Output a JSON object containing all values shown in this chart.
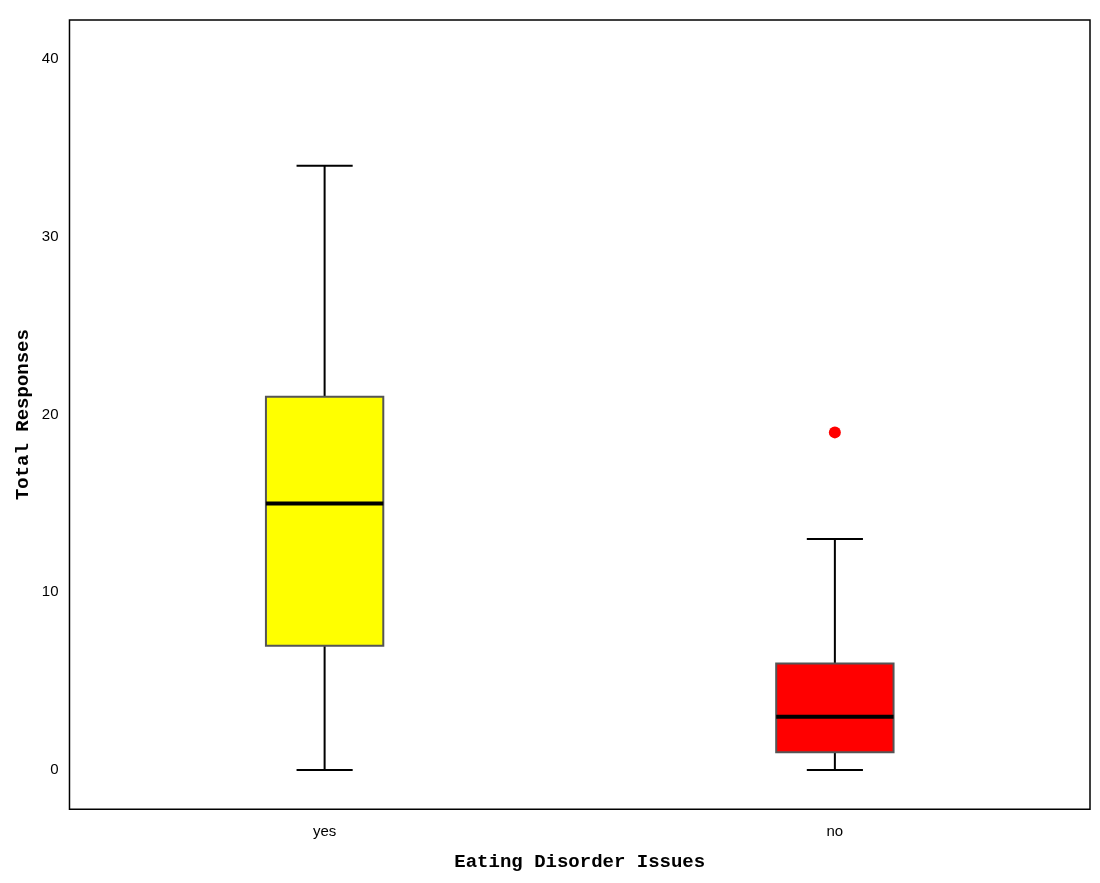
{
  "chart_data": {
    "type": "box",
    "xlabel": "Eating Disorder Issues",
    "ylabel": "Total Responses",
    "categories": [
      "yes",
      "no"
    ],
    "colors": [
      "#ffff00",
      "#ff0000"
    ],
    "boxes": [
      {
        "low": 0,
        "q1": 7,
        "median": 15,
        "q3": 21,
        "high": 34
      },
      {
        "low": 0,
        "q1": 1,
        "median": 3,
        "q3": 6,
        "high": 13,
        "outliers": [
          19
        ]
      }
    ],
    "ylim": [
      -2.2,
      42.2
    ],
    "yticks": [
      0,
      10,
      20,
      30,
      40
    ]
  }
}
